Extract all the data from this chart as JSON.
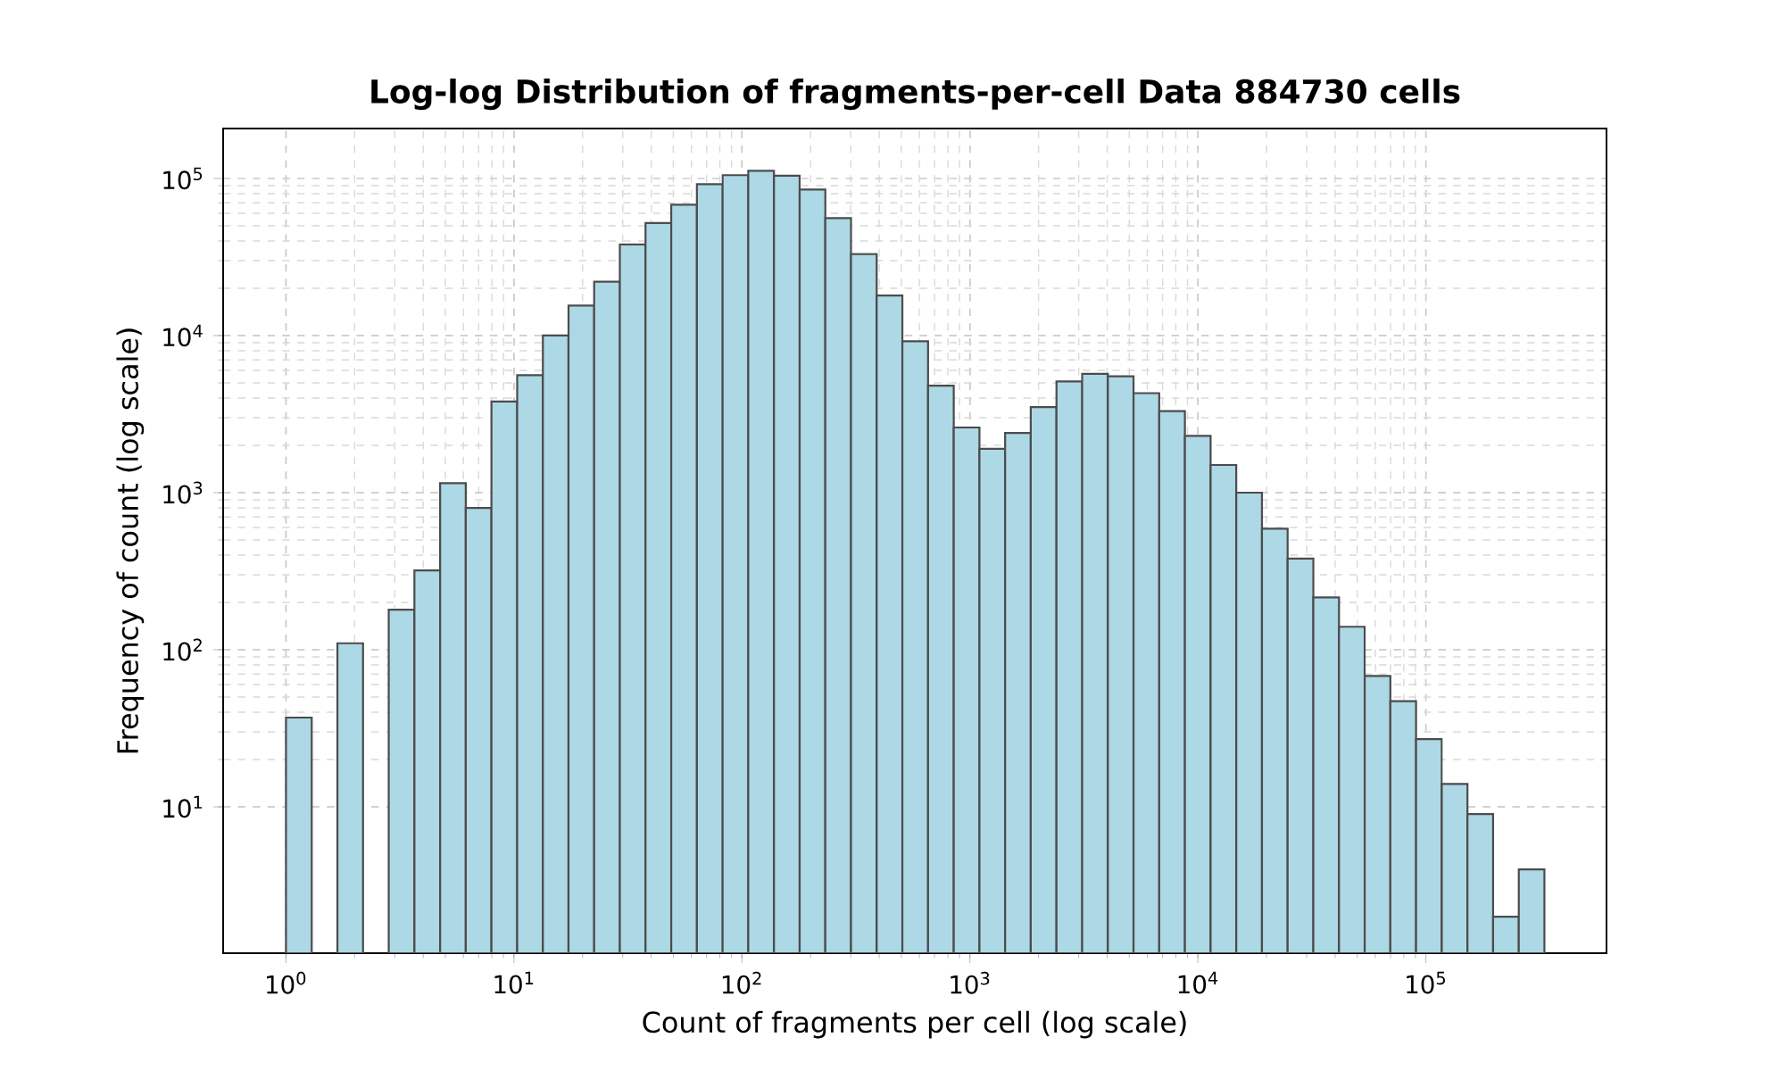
{
  "chart_data": {
    "type": "histogram",
    "title": "Log-log Distribution of fragments-per-cell Data 884730 cells",
    "xlabel": "Count of fragments per cell (log scale)",
    "ylabel": "Frequency of count (log scale)",
    "bins": [
      1,
      1.297,
      1.681,
      2.178,
      2.823,
      3.659,
      4.743,
      6.147,
      7.967,
      10.33,
      13.39,
      17.35,
      22.48,
      29.14,
      37.77,
      48.96,
      63.46,
      82.26,
      106.6,
      138.2,
      179.1,
      232.1,
      300.9,
      390.0,
      505.5,
      655.3,
      849.3,
      1101,
      1427,
      1849,
      2397,
      3107,
      4028,
      5220,
      6766,
      8770,
      11370,
      14730,
      19100,
      24750,
      32090,
      41590,
      53910,
      69870,
      90560,
      117400,
      152200,
      197200,
      255600,
      331100
    ],
    "values": [
      37,
      null,
      110,
      null,
      180,
      320,
      1150,
      800,
      3800,
      5600,
      10000,
      15500,
      22000,
      38000,
      52000,
      68000,
      92000,
      105000,
      112000,
      104000,
      85000,
      56000,
      33000,
      18000,
      9200,
      4800,
      2600,
      1900,
      2400,
      3500,
      5100,
      5700,
      5500,
      4300,
      3300,
      2300,
      1500,
      1000,
      590,
      380,
      215,
      140,
      68,
      47,
      27,
      14,
      9,
      2,
      4
    ],
    "color": "#add8e6",
    "xlim": [
      0.53,
      620000
    ],
    "ylim": [
      1.17,
      208000
    ],
    "xticks": [
      {
        "value": 1,
        "label": "10$^{0}$"
      },
      {
        "value": 10,
        "label": "10$^{1}$"
      },
      {
        "value": 100,
        "label": "10$^{2}$"
      },
      {
        "value": 1000,
        "label": "10$^{3}$"
      },
      {
        "value": 10000,
        "label": "10$^{4}$"
      },
      {
        "value": 100000,
        "label": "10$^{5}$"
      }
    ],
    "yticks": [
      {
        "value": 10,
        "label": "10$^{1}$"
      },
      {
        "value": 100,
        "label": "10$^{2}$"
      },
      {
        "value": 1000,
        "label": "10$^{3}$"
      },
      {
        "value": 10000,
        "label": "10$^{4}$"
      },
      {
        "value": 100000,
        "label": "10$^{5}$"
      }
    ],
    "log": "xy",
    "grid": true
  }
}
